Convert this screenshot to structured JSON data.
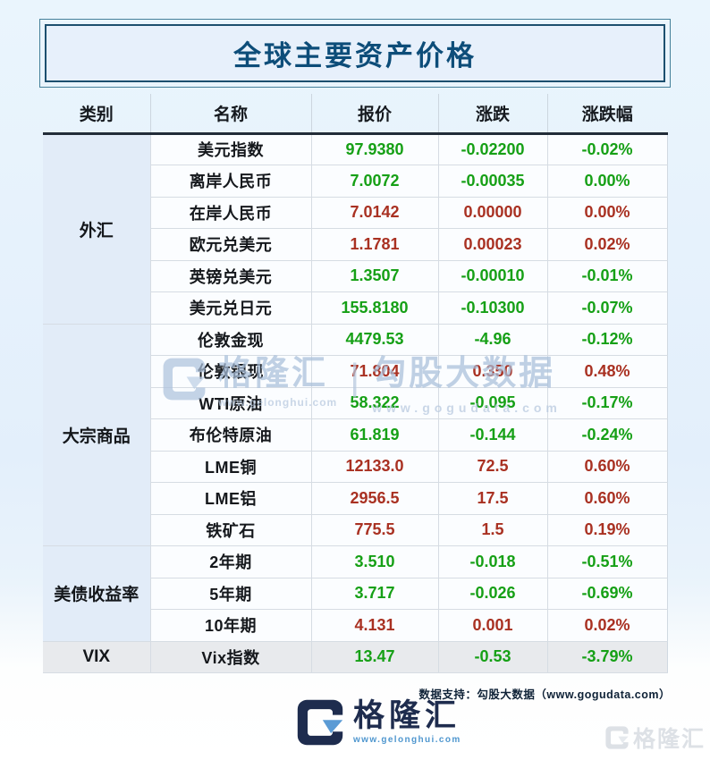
{
  "page": {
    "title": "全球主要资产价格"
  },
  "table": {
    "headers": [
      "类别",
      "名称",
      "报价",
      "涨跌",
      "涨跌幅"
    ]
  },
  "chart_data": {
    "type": "table",
    "title": "全球主要资产价格",
    "columns": [
      "类别",
      "名称",
      "报价",
      "涨跌",
      "涨跌幅"
    ],
    "color_convention": "red = up, green = down",
    "colors": {
      "up": "#a93122",
      "down": "#16a016"
    },
    "groups": [
      {
        "category": "外汇",
        "rows": [
          {
            "name": "美元指数",
            "price": "97.9380",
            "change": "-0.02200",
            "pct": "-0.02%",
            "dir": "down"
          },
          {
            "name": "离岸人民币",
            "price": "7.0072",
            "change": "-0.00035",
            "pct": "0.00%",
            "dir": "down"
          },
          {
            "name": "在岸人民币",
            "price": "7.0142",
            "change": "0.00000",
            "pct": "0.00%",
            "dir": "up"
          },
          {
            "name": "欧元兑美元",
            "price": "1.1781",
            "change": "0.00023",
            "pct": "0.02%",
            "dir": "up"
          },
          {
            "name": "英镑兑美元",
            "price": "1.3507",
            "change": "-0.00010",
            "pct": "-0.01%",
            "dir": "down"
          },
          {
            "name": "美元兑日元",
            "price": "155.8180",
            "change": "-0.10300",
            "pct": "-0.07%",
            "dir": "down"
          }
        ]
      },
      {
        "category": "大宗商品",
        "rows": [
          {
            "name": "伦敦金现",
            "price": "4479.53",
            "change": "-4.96",
            "pct": "-0.12%",
            "dir": "down"
          },
          {
            "name": "伦敦银现",
            "price": "71.804",
            "change": "0.350",
            "pct": "0.48%",
            "dir": "up"
          },
          {
            "name": "WTI原油",
            "price": "58.322",
            "change": "-0.095",
            "pct": "-0.17%",
            "dir": "down"
          },
          {
            "name": "布伦特原油",
            "price": "61.819",
            "change": "-0.144",
            "pct": "-0.24%",
            "dir": "down"
          },
          {
            "name": "LME铜",
            "price": "12133.0",
            "change": "72.5",
            "pct": "0.60%",
            "dir": "up"
          },
          {
            "name": "LME铝",
            "price": "2956.5",
            "change": "17.5",
            "pct": "0.60%",
            "dir": "up"
          },
          {
            "name": "铁矿石",
            "price": "775.5",
            "change": "1.5",
            "pct": "0.19%",
            "dir": "up"
          }
        ]
      },
      {
        "category": "美债收益率",
        "rows": [
          {
            "name": "2年期",
            "price": "3.510",
            "change": "-0.018",
            "pct": "-0.51%",
            "dir": "down"
          },
          {
            "name": "5年期",
            "price": "3.717",
            "change": "-0.026",
            "pct": "-0.69%",
            "dir": "down"
          },
          {
            "name": "10年期",
            "price": "4.131",
            "change": "0.001",
            "pct": "0.02%",
            "dir": "up"
          }
        ]
      },
      {
        "category": "VIX",
        "shaded": true,
        "rows": [
          {
            "name": "Vix指数",
            "price": "13.47",
            "change": "-0.53",
            "pct": "-3.79%",
            "dir": "down"
          }
        ]
      }
    ]
  },
  "watermark": {
    "brand": "格隆汇",
    "brand_url": "www.gelonghui.com",
    "data_brand": "勾股大数据",
    "data_url": "www.gogudata.com",
    "divider": "|"
  },
  "footer": {
    "support_text": "数据支持：勾股大数据（www.gogudata.com）",
    "brand_name": "格隆汇",
    "brand_url": "www.gelonghui.com",
    "corner_watermark": "格隆汇"
  },
  "theme": {
    "title_color": "#0d4d79",
    "navy": "#1e2c4e",
    "accent_blue": "#5b9bd5",
    "up_red": "#a93122",
    "down_green": "#16a016",
    "page_bg": "#e5f0fb"
  }
}
